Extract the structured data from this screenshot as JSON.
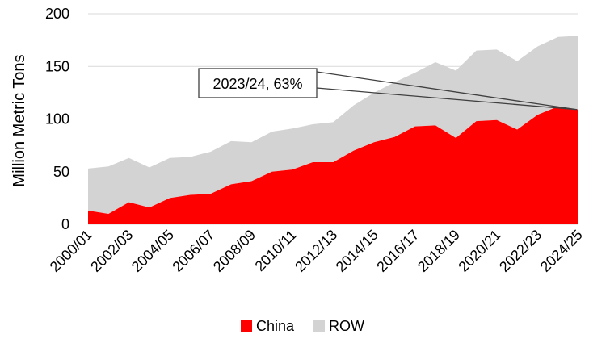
{
  "chart_data": {
    "type": "area",
    "stacked": true,
    "ylabel": "Million Metric Tons",
    "ylim": [
      0,
      200
    ],
    "yticks": [
      0,
      50,
      100,
      150,
      200
    ],
    "x": [
      "2000/01",
      "2001/02",
      "2002/03",
      "2003/04",
      "2004/05",
      "2005/06",
      "2006/07",
      "2007/08",
      "2008/09",
      "2009/10",
      "2010/11",
      "2011/12",
      "2012/13",
      "2013/14",
      "2014/15",
      "2015/16",
      "2016/17",
      "2017/18",
      "2018/19",
      "2019/20",
      "2020/21",
      "2021/22",
      "2022/23",
      "2023/24",
      "2024/25"
    ],
    "xtick_labels": [
      "2000/01",
      "2002/03",
      "2004/05",
      "2006/07",
      "2008/09",
      "2010/11",
      "2012/13",
      "2014/15",
      "2016/17",
      "2018/19",
      "2020/21",
      "2022/23",
      "2024/25"
    ],
    "series": [
      {
        "name": "China",
        "color": "#ff0000",
        "values": [
          13,
          10,
          21,
          16,
          25,
          28,
          29,
          38,
          41,
          50,
          52,
          59,
          59,
          70,
          78,
          83,
          93,
          94,
          82,
          98,
          99,
          90,
          104,
          112,
          109
        ]
      },
      {
        "name": "ROW",
        "color": "#d3d3d3",
        "values": [
          40,
          45,
          42,
          38,
          38,
          36,
          40,
          41,
          37,
          38,
          39,
          36,
          38,
          43,
          47,
          52,
          51,
          60,
          64,
          67,
          67,
          65,
          65,
          66,
          70
        ]
      }
    ],
    "grid": "horizontal",
    "legend_position": "bottom",
    "annotation": {
      "text": "2023/24, 63%"
    }
  }
}
